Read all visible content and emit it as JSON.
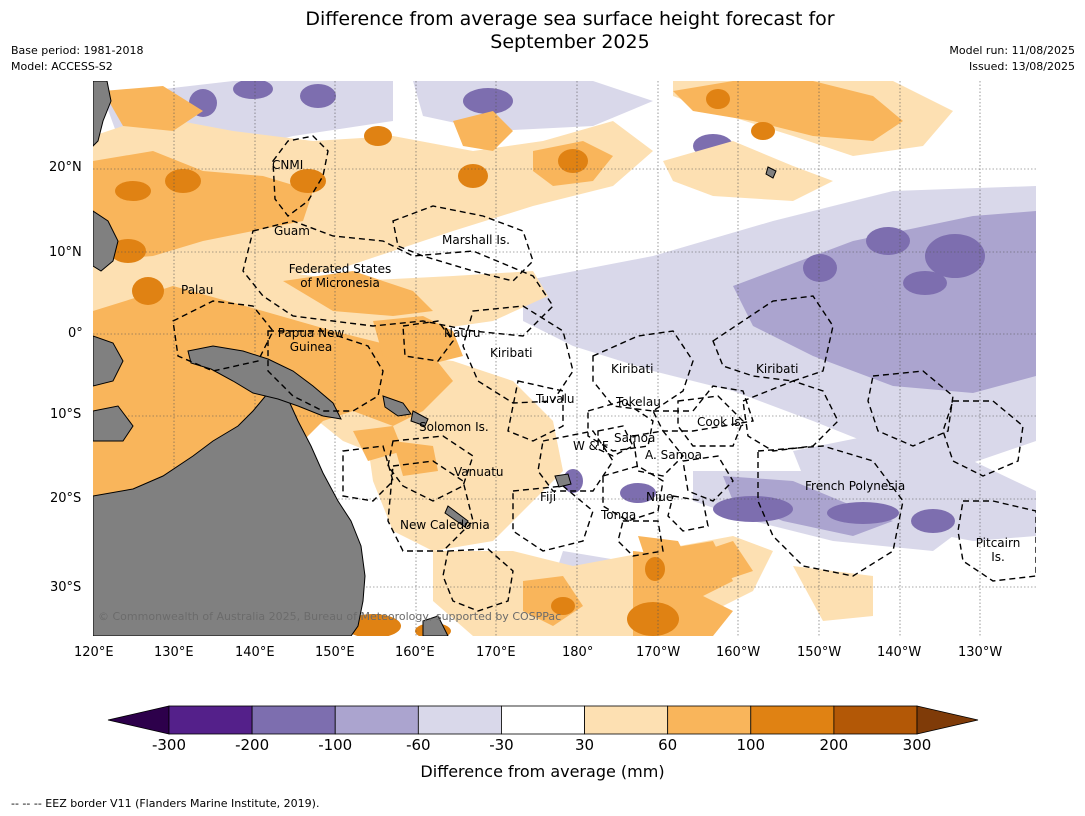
{
  "header": {
    "title_line1": "Difference from average sea surface height forecast for",
    "title_line2": "September 2025",
    "base_period": "Base period: 1981-2018",
    "model": "Model: ACCESS-S2",
    "model_run": "Model run: 11/08/2025",
    "issued": "Issued: 13/08/2025"
  },
  "map": {
    "land_color": "#808080",
    "lat_ticks": [
      "20°N",
      "10°N",
      "0°",
      "10°S",
      "20°S",
      "30°S"
    ],
    "lon_ticks": [
      "120°E",
      "130°E",
      "140°E",
      "150°E",
      "160°E",
      "170°E",
      "180°",
      "170°W",
      "160°W",
      "150°W",
      "140°W",
      "130°W"
    ],
    "regions": {
      "cnmi": "CNMI",
      "guam": "Guam",
      "marshall": "Marshall Is.",
      "fsm1": "Federated States",
      "fsm2": "of Micronesia",
      "palau": "Palau",
      "png1": "Papua New",
      "png2": "Guinea",
      "nauru": "Nauru",
      "kiribati_w": "Kiribati",
      "kiribati_c": "Kiribati",
      "kiribati_e": "Kiribati",
      "tuvalu": "Tuvalu",
      "tokelau": "Tokelau",
      "solomon": "Solomon Is.",
      "wf": "W & F",
      "samoa": "Samoa",
      "amsamoa": "A. Samoa",
      "cook": "Cook Is.",
      "vanuatu": "Vanuatu",
      "fiji": "Fiji",
      "niue": "Niue",
      "tonga": "Tonga",
      "frpoly": "French Polynesia",
      "newcal": "New Caledonia",
      "pitcairn1": "Pitcairn",
      "pitcairn2": "Is."
    },
    "copyright": "© Commonwealth of Australia 2025, Bureau of Meteorology, supported by COSPPac"
  },
  "colorbar": {
    "labels": [
      "-300",
      "-200",
      "-100",
      "-60",
      "-30",
      "30",
      "60",
      "100",
      "200",
      "300"
    ],
    "colors": [
      "#54208a",
      "#7d6eaf",
      "#aba4cf",
      "#d9d8ea",
      "#ffffff",
      "#fde0b2",
      "#f9b55b",
      "#e08213",
      "#b35806"
    ],
    "under_color": "#2d004b",
    "over_color": "#7f3b08",
    "title": "Difference from average (mm)"
  },
  "footer": {
    "eez_note": "--  --  -- EEZ border V11 (Flanders Marine Institute, 2019)."
  }
}
